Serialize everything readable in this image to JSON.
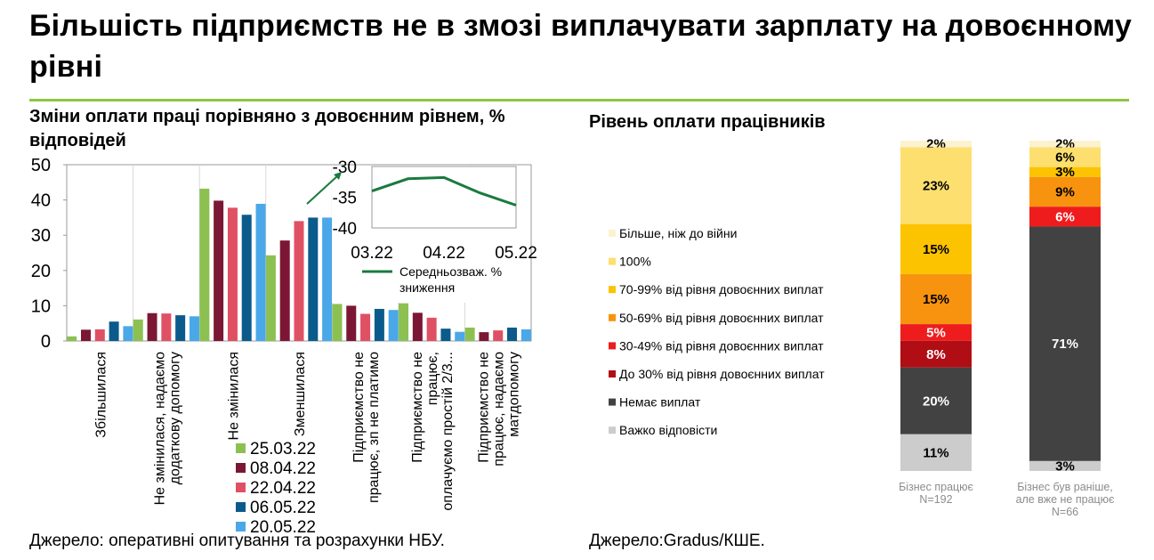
{
  "page": {
    "title": "Більшість підприємств не в змозі виплачувати зарплату на довоєнному рівні",
    "left_subtitle": "Зміни оплати праці порівняно з довоєнним рівнем, % відповідей",
    "right_subtitle": "Рівень оплати працівників",
    "left_source": "Джерело: оперативні опитування та розрахунки НБУ.",
    "right_source": "Джерело:Gradus/КШЕ."
  },
  "chart_data": [
    {
      "type": "bar",
      "ylim": [
        0,
        50
      ],
      "yticks": [
        "0",
        "10",
        "20",
        "30",
        "40",
        "50"
      ],
      "categories": [
        [
          "Збільшилася"
        ],
        [
          "Не змінилася, надаємо",
          "додаткову допомогу"
        ],
        [
          "Не змінилася"
        ],
        [
          "Зменшилася"
        ],
        [
          "Підприємство не",
          "працює, зп не платимо"
        ],
        [
          "Підприємство не",
          "працює,",
          "оплачуємо простій 2/3..."
        ],
        [
          "Підприємство не",
          "працює, надаємо",
          "матдопомогу"
        ]
      ],
      "series": [
        {
          "name": "25.03.22",
          "color": "#8cc152",
          "values": [
            1.3,
            6.1,
            43.2,
            24.3,
            10.5,
            10.7,
            3.8
          ]
        },
        {
          "name": "08.04.22",
          "color": "#7b1734",
          "values": [
            3.2,
            7.9,
            39.8,
            28.5,
            10.0,
            8.0,
            2.5
          ]
        },
        {
          "name": "22.04.22",
          "color": "#e05064",
          "values": [
            3.3,
            7.8,
            37.8,
            34.0,
            7.7,
            6.6,
            3.0
          ]
        },
        {
          "name": "06.05.22",
          "color": "#0b5a8c",
          "values": [
            5.5,
            7.3,
            35.8,
            35.0,
            9.1,
            3.5,
            3.8
          ]
        },
        {
          "name": "20.05.22",
          "color": "#4aa8e8",
          "values": [
            4.2,
            7.0,
            38.9,
            35.0,
            8.8,
            2.6,
            3.3
          ]
        }
      ]
    },
    {
      "type": "line",
      "x": [
        "03.22",
        "04.22",
        "05.22"
      ],
      "ylim": [
        -40,
        -30
      ],
      "yticks": [
        "-30",
        "-35",
        "-40"
      ],
      "series": [
        {
          "name": "Середньозваж. % зниження",
          "color": "#1a7a3e",
          "points": [
            [
              0,
              -34.0
            ],
            [
              0.5,
              -32.0
            ],
            [
              1.0,
              -31.8
            ],
            [
              1.5,
              -34.3
            ],
            [
              2.0,
              -36.3
            ]
          ]
        }
      ]
    },
    {
      "type": "bar",
      "stacked": true,
      "segments": [
        {
          "name": "Більше, ніж до війни",
          "color": "#fdf2cf"
        },
        {
          "name": "100%",
          "color": "#fddf6f"
        },
        {
          "name": "70-99% від рівня довоєнних виплат",
          "color": "#fcc300"
        },
        {
          "name": "50-69% від рівня довоєнних виплат",
          "color": "#f8930f"
        },
        {
          "name": "30-49% від рівня довоєнних виплат",
          "color": "#ee1c1c"
        },
        {
          "name": "До 30% від рівня довоєнних виплат",
          "color": "#b00d15"
        },
        {
          "name": "Немає виплат",
          "color": "#424242"
        },
        {
          "name": "Важко відповісти",
          "color": "#cccccc"
        }
      ],
      "bars": [
        {
          "label": [
            "Бізнес працює",
            "N=192"
          ],
          "values": [
            2,
            23,
            15,
            15,
            5,
            8,
            20,
            11
          ],
          "labels": [
            "2%",
            "23%",
            "15%",
            "15%",
            "5%",
            "8%",
            "20%",
            "11%"
          ]
        },
        {
          "label": [
            "Бізнес був раніше,",
            "але вже не працює",
            "N=66"
          ],
          "values": [
            2,
            6,
            3,
            9,
            6,
            0,
            71,
            3
          ],
          "labels": [
            "2%",
            "6%",
            "3%",
            "9%",
            "6%",
            "",
            "71%",
            "3%"
          ]
        }
      ]
    }
  ]
}
